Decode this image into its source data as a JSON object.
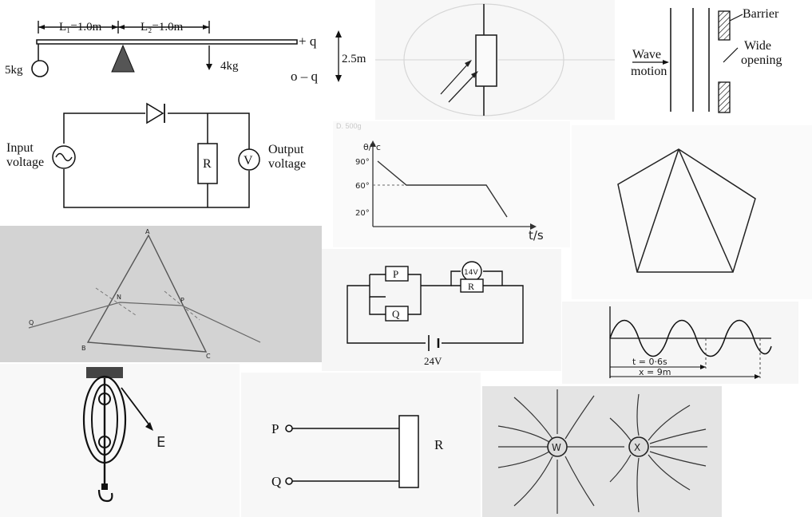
{
  "lever": {
    "l1": "L₁=1.0m",
    "l2": "L₂=1.0m",
    "plus_q": "+ q",
    "minus_q": "o – q",
    "height": "2.5m",
    "mass_left": "5kg",
    "mass_right": "4kg"
  },
  "rectifier": {
    "input_label": [
      "Input",
      "voltage"
    ],
    "output_label": [
      "Output",
      "voltage"
    ],
    "resistor": "R",
    "voltmeter": "V"
  },
  "ldr": {
    "label": ""
  },
  "barrier": {
    "barrier": "Barrier",
    "wide_opening": [
      "Wide",
      "opening"
    ],
    "wave_motion": [
      "Wave",
      "motion"
    ]
  },
  "cooling": {
    "yaxis": "θ/°c",
    "xaxis": "t/s",
    "ticks": [
      "90°",
      "60°",
      "20°"
    ],
    "header": "D. 500g"
  },
  "prism": {
    "labels": [
      "A",
      "B",
      "C",
      "N",
      "P",
      "Q"
    ]
  },
  "series_circuit": {
    "p": "P",
    "q": "Q",
    "r": "R",
    "lamp": "14V",
    "battery": "24V"
  },
  "wave": {
    "t_label": "t = 0·6s",
    "x_label": "x = 9m"
  },
  "pulley": {
    "effort": "E"
  },
  "terminals": {
    "p": "P",
    "q": "Q",
    "r": "R"
  },
  "field": {
    "left": "W",
    "right": "X"
  }
}
